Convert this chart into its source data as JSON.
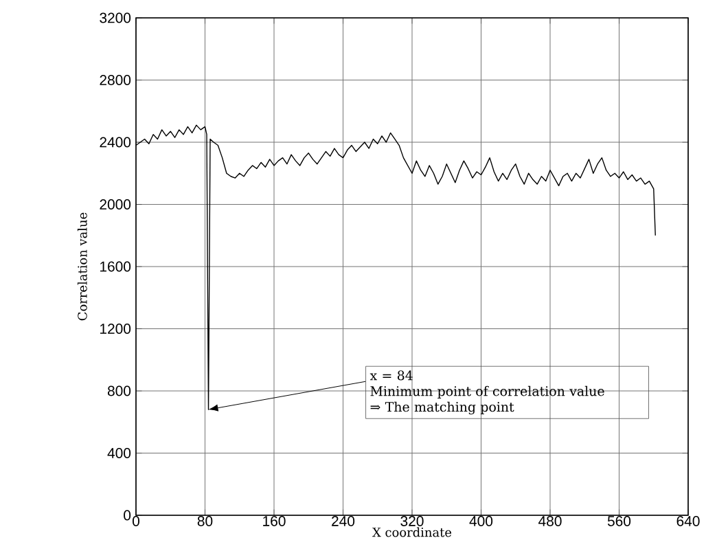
{
  "chart_data": {
    "type": "line",
    "xlabel": "X coordinate",
    "ylabel": "Correlation value",
    "xlim": [
      0,
      640
    ],
    "xticks": [
      0,
      80,
      160,
      240,
      320,
      400,
      480,
      560,
      640
    ],
    "ylim": [
      0,
      3200
    ],
    "yticks": [
      0,
      400,
      800,
      1200,
      1600,
      2000,
      2400,
      2800,
      3200
    ],
    "grid": true,
    "marker": "none",
    "line_style": "solid",
    "series": [
      {
        "color": "#000000",
        "x": [
          0,
          5,
          10,
          15,
          20,
          25,
          30,
          35,
          40,
          45,
          50,
          55,
          60,
          65,
          70,
          75,
          80,
          82,
          84,
          86,
          90,
          95,
          100,
          105,
          110,
          115,
          120,
          125,
          130,
          135,
          140,
          145,
          150,
          155,
          160,
          165,
          170,
          175,
          180,
          185,
          190,
          195,
          200,
          205,
          210,
          215,
          220,
          225,
          230,
          235,
          240,
          245,
          250,
          255,
          260,
          265,
          270,
          275,
          280,
          285,
          290,
          295,
          300,
          305,
          310,
          315,
          320,
          325,
          330,
          335,
          340,
          345,
          350,
          355,
          360,
          365,
          370,
          375,
          380,
          385,
          390,
          395,
          400,
          405,
          410,
          415,
          420,
          425,
          430,
          435,
          440,
          445,
          450,
          455,
          460,
          465,
          470,
          475,
          480,
          485,
          490,
          495,
          500,
          505,
          510,
          515,
          520,
          525,
          530,
          535,
          540,
          545,
          550,
          555,
          560,
          565,
          570,
          575,
          580,
          585,
          590,
          595,
          600,
          602
        ],
        "values": [
          2380,
          2400,
          2420,
          2390,
          2450,
          2420,
          2480,
          2440,
          2470,
          2430,
          2480,
          2450,
          2500,
          2460,
          2510,
          2480,
          2500,
          2450,
          680,
          2420,
          2400,
          2380,
          2300,
          2200,
          2180,
          2170,
          2200,
          2180,
          2220,
          2250,
          2230,
          2270,
          2240,
          2290,
          2250,
          2280,
          2300,
          2260,
          2320,
          2280,
          2250,
          2300,
          2330,
          2290,
          2260,
          2300,
          2340,
          2310,
          2360,
          2320,
          2300,
          2350,
          2380,
          2340,
          2370,
          2400,
          2360,
          2420,
          2390,
          2440,
          2400,
          2460,
          2420,
          2380,
          2300,
          2250,
          2200,
          2280,
          2220,
          2180,
          2250,
          2200,
          2130,
          2180,
          2260,
          2200,
          2140,
          2220,
          2280,
          2230,
          2170,
          2210,
          2190,
          2240,
          2300,
          2210,
          2150,
          2200,
          2160,
          2220,
          2260,
          2180,
          2130,
          2200,
          2160,
          2130,
          2180,
          2150,
          2220,
          2170,
          2120,
          2180,
          2200,
          2150,
          2200,
          2170,
          2230,
          2290,
          2200,
          2260,
          2300,
          2220,
          2180,
          2200,
          2170,
          2210,
          2160,
          2190,
          2150,
          2170,
          2130,
          2150,
          2100,
          1800
        ]
      }
    ],
    "annotations": [
      {
        "text": "x = 84",
        "x": 84,
        "y": 680
      },
      "Minimum point of correlation value",
      "⇒ The matching point"
    ]
  }
}
